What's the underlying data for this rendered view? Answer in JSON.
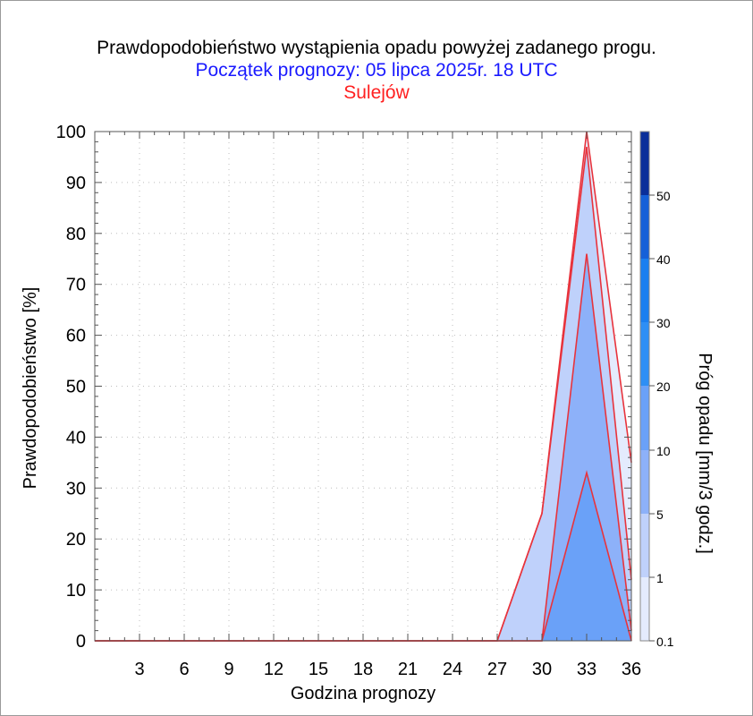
{
  "chart_data": {
    "type": "area",
    "title": "Prawdopodobieństwo wystąpienia opadu powyżej zadanego progu.",
    "subtitle": "Początek prognozy: 05 lipca 2025r. 18 UTC",
    "location": "Sulejów",
    "xlabel": "Godzina prognozy",
    "ylabel": "Prawdopodobieństwo [%]",
    "colorbar_label": "Próg opadu [mm/3 godz.]",
    "xlim": [
      0,
      36
    ],
    "ylim": [
      0,
      100
    ],
    "x_ticks": [
      3,
      6,
      9,
      12,
      15,
      18,
      21,
      24,
      27,
      30,
      33,
      36
    ],
    "y_ticks": [
      0,
      10,
      20,
      30,
      40,
      50,
      60,
      70,
      80,
      90,
      100
    ],
    "grid": true,
    "x": [
      0,
      3,
      6,
      9,
      12,
      15,
      18,
      21,
      24,
      27,
      30,
      33,
      36
    ],
    "series": [
      {
        "threshold": "0.1",
        "color": "#e4ebfd",
        "values": [
          0,
          0,
          0,
          0,
          0,
          0,
          0,
          0,
          0,
          0,
          25,
          100,
          35
        ]
      },
      {
        "threshold": "1",
        "color": "#bfd1fb",
        "values": [
          0,
          0,
          0,
          0,
          0,
          0,
          0,
          0,
          0,
          0,
          25,
          97,
          12
        ]
      },
      {
        "threshold": "5",
        "color": "#8db1f9",
        "values": [
          0,
          0,
          0,
          0,
          0,
          0,
          0,
          0,
          0,
          0,
          0,
          76,
          2
        ]
      },
      {
        "threshold": "10",
        "color": "#6aa1f8",
        "values": [
          0,
          0,
          0,
          0,
          0,
          0,
          0,
          0,
          0,
          0,
          0,
          33,
          0
        ]
      }
    ],
    "colorbar": {
      "labels": [
        "0.1",
        "1",
        "5",
        "10",
        "20",
        "30",
        "40",
        "50"
      ],
      "colors": [
        "#e4ebfd",
        "#bfd1fb",
        "#8db1f9",
        "#6aa1f8",
        "#2e8ff5",
        "#1a7ff0",
        "#1560d8",
        "#0d45b8",
        "#0a2f9a"
      ]
    }
  }
}
